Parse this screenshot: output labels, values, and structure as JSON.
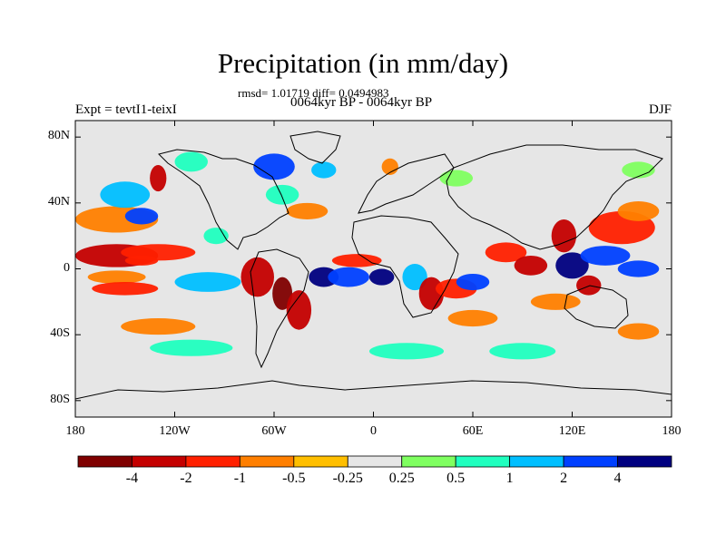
{
  "title": "Precipitation (in mm/day)",
  "stats_line": "rmsd= 1.01719 diff= 0.0494983",
  "subtitle": "0064kyr BP - 0064kyr BP",
  "left_label": "Expt = tevtI1-teixI",
  "right_label": "DJF",
  "map": {
    "lat_range": [
      -90,
      90
    ],
    "lon_range": [
      -180,
      180
    ],
    "y_ticks": [
      {
        "value": 80,
        "label": "80N"
      },
      {
        "value": 40,
        "label": "40N"
      },
      {
        "value": 0,
        "label": "0"
      },
      {
        "value": -40,
        "label": "40S"
      },
      {
        "value": -80,
        "label": "80S"
      }
    ],
    "x_ticks": [
      {
        "value": -180,
        "label": "180"
      },
      {
        "value": -120,
        "label": "120W"
      },
      {
        "value": -60,
        "label": "60W"
      },
      {
        "value": 0,
        "label": "0"
      },
      {
        "value": 60,
        "label": "60E"
      },
      {
        "value": 120,
        "label": "120E"
      },
      {
        "value": 180,
        "label": "180"
      }
    ],
    "background_color": "#e6e6e6"
  },
  "colorbar": {
    "colors": [
      "#7f0000",
      "#c40000",
      "#ff2000",
      "#ff7f00",
      "#ffbf00",
      "#e6e6e6",
      "#7fff60",
      "#20ffbf",
      "#00bfff",
      "#0040ff",
      "#000080"
    ],
    "labels": [
      "-4",
      "-2",
      "-1",
      "-0.5",
      "-0.25",
      "0.25",
      "0.5",
      "1",
      "2",
      "4"
    ]
  },
  "fields": [
    {
      "lon": -155,
      "lat": 8,
      "level": 1,
      "w": 50,
      "h": 7
    },
    {
      "lon": -140,
      "lat": 5,
      "level": 2,
      "w": 20,
      "h": 3
    },
    {
      "lon": -130,
      "lat": 10,
      "level": 2,
      "w": 45,
      "h": 5
    },
    {
      "lon": -155,
      "lat": -5,
      "level": 3,
      "w": 35,
      "h": 4
    },
    {
      "lon": -150,
      "lat": -12,
      "level": 2,
      "w": 40,
      "h": 4
    },
    {
      "lon": -100,
      "lat": -8,
      "level": 8,
      "w": 40,
      "h": 6
    },
    {
      "lon": -155,
      "lat": 30,
      "level": 3,
      "w": 50,
      "h": 8
    },
    {
      "lon": -140,
      "lat": 32,
      "level": 9,
      "w": 20,
      "h": 5
    },
    {
      "lon": -150,
      "lat": 45,
      "level": 8,
      "w": 30,
      "h": 8
    },
    {
      "lon": -110,
      "lat": 65,
      "level": 7,
      "w": 20,
      "h": 6
    },
    {
      "lon": -60,
      "lat": 62,
      "level": 9,
      "w": 25,
      "h": 8
    },
    {
      "lon": -55,
      "lat": 45,
      "level": 7,
      "w": 20,
      "h": 6
    },
    {
      "lon": -40,
      "lat": 35,
      "level": 3,
      "w": 25,
      "h": 5
    },
    {
      "lon": -130,
      "lat": 55,
      "level": 1,
      "w": 10,
      "h": 8
    },
    {
      "lon": -95,
      "lat": 20,
      "level": 7,
      "w": 15,
      "h": 5
    },
    {
      "lon": -70,
      "lat": -5,
      "level": 1,
      "w": 20,
      "h": 12
    },
    {
      "lon": -55,
      "lat": -15,
      "level": 0,
      "w": 12,
      "h": 10
    },
    {
      "lon": -45,
      "lat": -25,
      "level": 1,
      "w": 15,
      "h": 12
    },
    {
      "lon": -30,
      "lat": -5,
      "level": 10,
      "w": 18,
      "h": 6
    },
    {
      "lon": -15,
      "lat": -5,
      "level": 9,
      "w": 25,
      "h": 6
    },
    {
      "lon": -10,
      "lat": 5,
      "level": 2,
      "w": 30,
      "h": 4
    },
    {
      "lon": 5,
      "lat": -5,
      "level": 10,
      "w": 15,
      "h": 5
    },
    {
      "lon": 25,
      "lat": -5,
      "level": 8,
      "w": 15,
      "h": 8
    },
    {
      "lon": 35,
      "lat": -15,
      "level": 1,
      "w": 15,
      "h": 10
    },
    {
      "lon": 50,
      "lat": -12,
      "level": 2,
      "w": 25,
      "h": 6
    },
    {
      "lon": 60,
      "lat": -8,
      "level": 9,
      "w": 20,
      "h": 5
    },
    {
      "lon": 60,
      "lat": -30,
      "level": 3,
      "w": 30,
      "h": 5
    },
    {
      "lon": 80,
      "lat": 10,
      "level": 2,
      "w": 25,
      "h": 6
    },
    {
      "lon": 95,
      "lat": 2,
      "level": 1,
      "w": 20,
      "h": 6
    },
    {
      "lon": 120,
      "lat": 2,
      "level": 10,
      "w": 20,
      "h": 8
    },
    {
      "lon": 140,
      "lat": 8,
      "level": 9,
      "w": 30,
      "h": 6
    },
    {
      "lon": 160,
      "lat": 0,
      "level": 9,
      "w": 25,
      "h": 5
    },
    {
      "lon": 115,
      "lat": 20,
      "level": 1,
      "w": 15,
      "h": 10
    },
    {
      "lon": 150,
      "lat": 25,
      "level": 2,
      "w": 40,
      "h": 10
    },
    {
      "lon": 160,
      "lat": 35,
      "level": 3,
      "w": 25,
      "h": 6
    },
    {
      "lon": 130,
      "lat": -10,
      "level": 1,
      "w": 15,
      "h": 6
    },
    {
      "lon": 110,
      "lat": -20,
      "level": 3,
      "w": 30,
      "h": 5
    },
    {
      "lon": -130,
      "lat": -35,
      "level": 3,
      "w": 45,
      "h": 5
    },
    {
      "lon": -110,
      "lat": -48,
      "level": 7,
      "w": 50,
      "h": 5
    },
    {
      "lon": 20,
      "lat": -50,
      "level": 7,
      "w": 45,
      "h": 5
    },
    {
      "lon": 90,
      "lat": -50,
      "level": 7,
      "w": 40,
      "h": 5
    },
    {
      "lon": 160,
      "lat": -38,
      "level": 3,
      "w": 25,
      "h": 5
    },
    {
      "lon": -30,
      "lat": 60,
      "level": 8,
      "w": 15,
      "h": 5
    },
    {
      "lon": 10,
      "lat": 62,
      "level": 3,
      "w": 10,
      "h": 5
    },
    {
      "lon": 50,
      "lat": 55,
      "level": 6,
      "w": 20,
      "h": 5
    },
    {
      "lon": 160,
      "lat": 60,
      "level": 6,
      "w": 20,
      "h": 5
    }
  ]
}
